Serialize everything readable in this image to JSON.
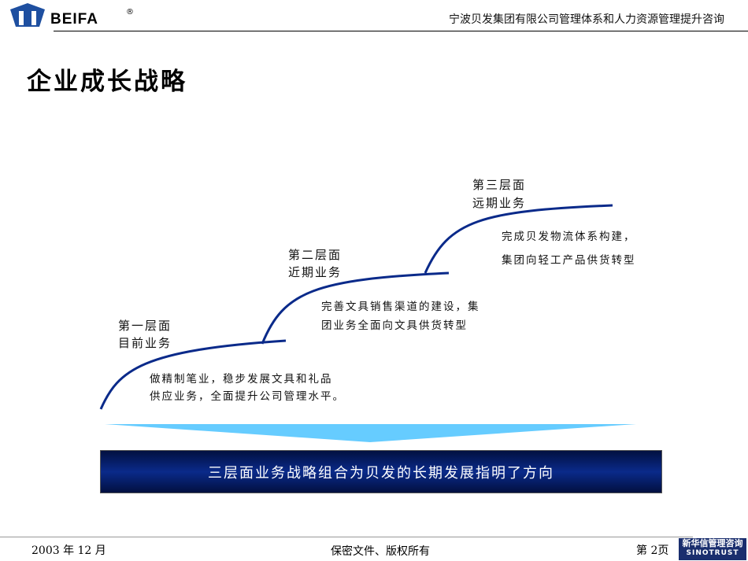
{
  "header": {
    "logo_text": "BEIFA",
    "logo_mark": "®",
    "title": "宁波贝发集团有限公司管理体系和人力资源管理提升咨询"
  },
  "page_title": "企业成长战略",
  "tiers": [
    {
      "label1": "第一层面",
      "label2": "目前业务",
      "desc1": "做精制笔业，稳步发展文具和礼品",
      "desc2": "供应业务，全面提升公司管理水平。"
    },
    {
      "label1": "第二层面",
      "label2": "近期业务",
      "desc1": "完善文具销售渠道的建设，集",
      "desc2": "团业务全面向文具供货转型"
    },
    {
      "label1": "第三层面",
      "label2": "远期业务",
      "desc1": "完成贝发物流体系构建，",
      "desc2": "集团向轻工产品供货转型"
    }
  ],
  "summary": "三层面业务战略组合为贝发的长期发展指明了方向",
  "footer": {
    "date": "2003 年 12 月",
    "confidential": "保密文件、版权所有",
    "page": "第 2页",
    "brand_cn": "新华信管理咨询",
    "brand_en": "SINOTRUST"
  },
  "colors": {
    "curve": "#0a2a8a",
    "banner": "#0a1f6b",
    "arrow": "#66ccff"
  }
}
